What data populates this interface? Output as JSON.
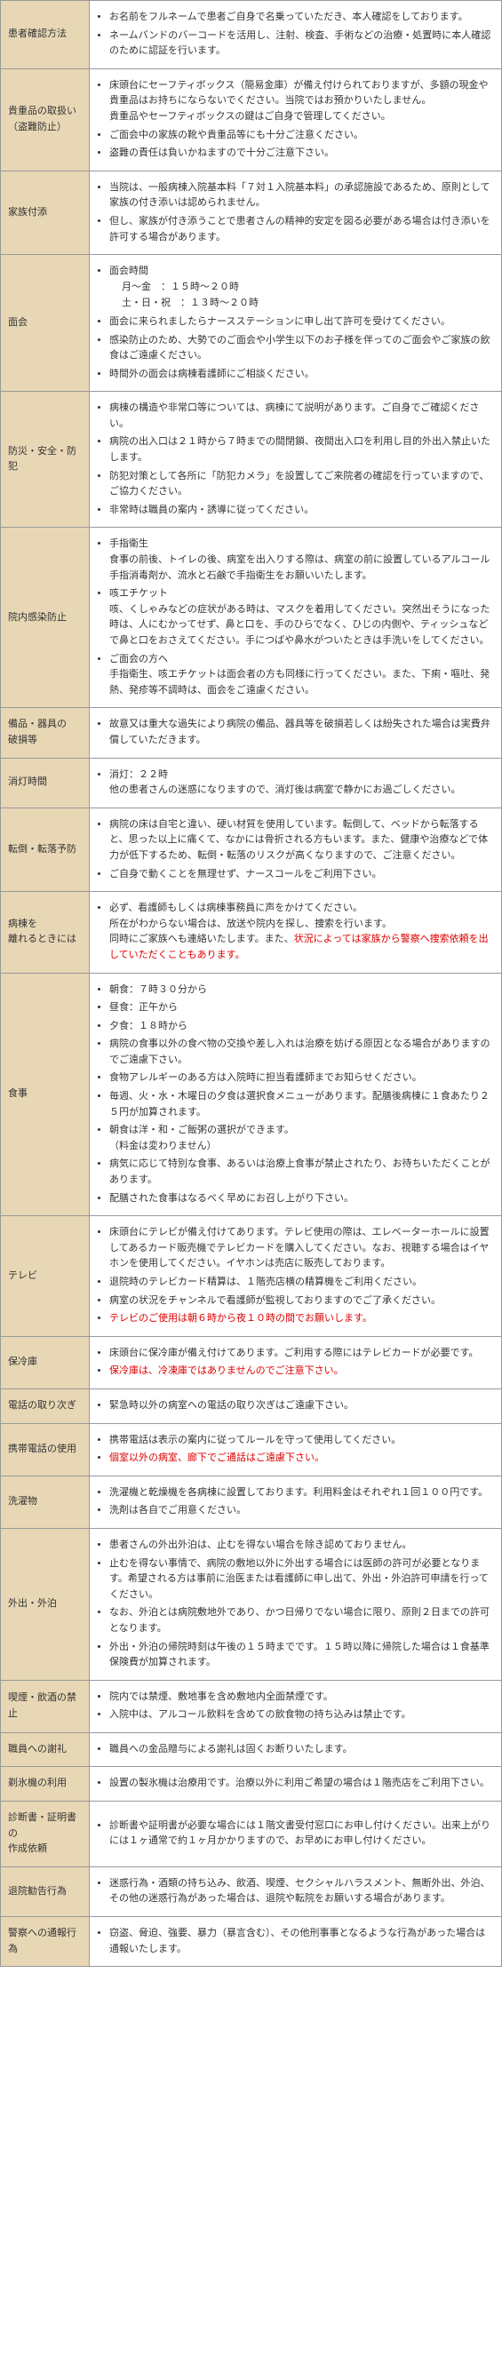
{
  "colors": {
    "label_bg": "#e8d7b5",
    "border": "#999999",
    "text": "#333333",
    "red": "#dd0000"
  },
  "rows": [
    {
      "label": "患者確認方法",
      "items": [
        {
          "t": "お名前をフルネームで患者ご自身で名乗っていただき、本人確認をしております。"
        },
        {
          "t": "ネームバンドのバーコードを活用し、注射、検査、手術などの治療・処置時に本人確認のために認証を行います。"
        }
      ]
    },
    {
      "label": "貴重品の取扱い<br>（盗難防止）",
      "items": [
        {
          "t": "床頭台にセーフティボックス（簡易金庫）が備え付けられておりますが、多額の現金や貴重品はお持ちにならないでください。当院ではお預かりいたしません。<br>貴重品やセーフティボックスの鍵はご自身で管理してください。"
        },
        {
          "t": "ご面会中の家族の靴や貴重品等にも十分ご注意ください。"
        },
        {
          "t": "盗難の責任は負いかねますので十分ご注意下さい。"
        }
      ]
    },
    {
      "label": "家族付添",
      "items": [
        {
          "t": "当院は、一般病棟入院基本料「７対１入院基本料」の承認施設であるため、原則として家族の付き添いは認められません。"
        },
        {
          "t": "但し、家族が付き添うことで患者さんの精神的安定を図る必要がある場合は付き添いを許可する場合があります。"
        }
      ]
    },
    {
      "label": "面会",
      "items": [
        {
          "t": "面会時間",
          "sub": [
            "月～金　：１５時～２０時",
            "土・日・祝　：１３時～２０時"
          ]
        },
        {
          "t": "面会に来られましたらナースステーションに申し出て許可を受けてください。"
        },
        {
          "t": "感染防止のため、大勢でのご面会や小学生以下のお子様を伴ってのご面会やご家族の飲食はご遠慮ください。"
        },
        {
          "t": "時間外の面会は病棟看護師にご相談ください。"
        }
      ]
    },
    {
      "label": "防災・安全・防犯",
      "items": [
        {
          "t": "病棟の構造や非常口等については、病棟にて説明があります。ご自身でご確認ください。"
        },
        {
          "t": "病院の出入口は２１時から７時までの間閉鎖、夜間出入口を利用し目的外出入禁止いたします。"
        },
        {
          "t": "防犯対策として各所に「防犯カメラ」を設置してご来院者の確認を行っていますので、ご協力ください。"
        },
        {
          "t": "非常時は職員の案内・誘導に従ってください。"
        }
      ]
    },
    {
      "label": "院内感染防止",
      "items": [
        {
          "t": "手指衛生<br>食事の前後、トイレの後、病室を出入りする際は、病室の前に設置しているアルコール手指消毒剤か、流水と石鹸で手指衛生をお願いいたします。"
        },
        {
          "t": "咳エチケット<br>咳、くしゃみなどの症状がある時は、マスクを着用してください。突然出そうになった時は、人にむかってせず、鼻と口を、手のひらでなく、ひじの内側や、ティッシュなどで鼻と口をおさえてください。手につばや鼻水がついたときは手洗いをしてください。"
        },
        {
          "t": "ご面会の方へ<br>手指衛生、咳エチケットは面会者の方も同様に行ってください。また、下痢・嘔吐、発熱、発疹等不調時は、面会をご遠慮ください。"
        }
      ]
    },
    {
      "label": "備品・器具の<br>破損等",
      "items": [
        {
          "t": "故意又は重大な過失により病院の備品、器具等を破損若しくは紛失された場合は実費弁償していただきます。"
        }
      ]
    },
    {
      "label": "消灯時間",
      "items": [
        {
          "t": "消灯：２２時<br>他の患者さんの迷惑になりますので、消灯後は病室で静かにお過ごしください。"
        }
      ]
    },
    {
      "label": "転倒・転落予防",
      "items": [
        {
          "t": "病院の床は自宅と違い、硬い材質を使用しています。転倒して、ベッドから転落すると、思った以上に痛くて、なかには骨折される方もいます。また、健康や治療などで体力が低下するため、転倒・転落のリスクが高くなりますので、ご注意ください。"
        },
        {
          "t": "ご自身で動くことを無理せず、ナースコールをご利用下さい。"
        }
      ]
    },
    {
      "label": "病棟を<br>離れるときには",
      "items": [
        {
          "t": "必ず、看護師もしくは病棟事務員に声をかけてください。<br>所在がわからない場合は、放送や院内を探し、捜索を行います。<br>同時にご家族へも連絡いたします。また、"
        },
        {
          "t": "",
          "red_inline": "状況によっては家族から警察へ捜索依頼を出していただくこともあります。"
        }
      ],
      "special": "combine"
    },
    {
      "label": "食事",
      "items": [
        {
          "t": "朝食：７時３０分から"
        },
        {
          "t": "昼食：正午から"
        },
        {
          "t": "夕食：１８時から"
        },
        {
          "t": "病院の食事以外の食べ物の交換や差し入れは治療を妨げる原因となる場合がありますのでご遠慮下さい。"
        },
        {
          "t": "食物アレルギーのある方は入院時に担当看護師までお知らせください。"
        },
        {
          "t": "毎週、火・水・木曜日の夕食は選択食メニューがあります。配膳後病棟に１食あたり２５円が加算されます。"
        },
        {
          "t": "朝食は洋・和・ご飯粥の選択ができます。<br>（料金は変わりません）"
        },
        {
          "t": "病気に応じて特別な食事、あるいは治療上食事が禁止されたり、お待ちいただくことがあります。"
        },
        {
          "t": "配膳された食事はなるべく早めにお召し上がり下さい。"
        }
      ]
    },
    {
      "label": "テレビ",
      "items": [
        {
          "t": "床頭台にテレビが備え付けてあります。テレビ使用の際は、エレベーターホールに設置してあるカード販売機でテレビカードを購入してください。なお、視聴する場合はイヤホンを使用してください。イヤホンは売店に販売しております。"
        },
        {
          "t": "退院時のテレビカード精算は、１階売店横の精算機をご利用ください。"
        },
        {
          "t": "病室の状況をチャンネルで看護師が監視しておりますのでご了承ください。"
        },
        {
          "t": "",
          "red": "テレビのご使用は朝６時から夜１０時の間でお願いします。"
        }
      ]
    },
    {
      "label": "保冷庫",
      "items": [
        {
          "t": "床頭台に保冷庫が備え付けてあります。ご利用する際にはテレビカードが必要です。"
        },
        {
          "t": "",
          "red": "保冷庫は、冷凍庫ではありませんのでご注意下さい。"
        }
      ]
    },
    {
      "label": "電話の取り次ぎ",
      "items": [
        {
          "t": "緊急時以外の病室への電話の取り次ぎはご遠慮下さい。"
        }
      ]
    },
    {
      "label": "携帯電話の使用",
      "items": [
        {
          "t": "携帯電話は表示の案内に従ってルールを守って使用してください。"
        },
        {
          "t": "",
          "red": "個室以外の病室、廊下でご通話はご遠慮下さい。"
        }
      ]
    },
    {
      "label": "洗濯物",
      "items": [
        {
          "t": "洗濯機と乾燥機を各病棟に設置しております。利用料金はそれぞれ１回１００円です。"
        },
        {
          "t": "洗剤は各自でご用意ください。"
        }
      ]
    },
    {
      "label": "外出・外泊",
      "items": [
        {
          "t": "患者さんの外出外泊は、止むを得ない場合を除き認めておりません。"
        },
        {
          "t": "止むを得ない事情で、病院の敷地以外に外出する場合には医師の許可が必要となります。希望される方は事前に治医または看護師に申し出て、外出・外泊許可申請を行ってください。"
        },
        {
          "t": "なお、外泊とは病院敷地外であり、かつ日帰りでない場合に限り、原則２日までの許可となります。"
        },
        {
          "t": "外出・外泊の帰院時刻は午後の１５時までです。１５時以降に帰院した場合は１食基準保険費が加算されます。"
        }
      ]
    },
    {
      "label": "喫煙・飲酒の禁止",
      "items": [
        {
          "t": "院内では禁煙、敷地事を含め敷地内全面禁煙です。"
        },
        {
          "t": "入院中は、アルコール飲料を含めての飲食物の持ち込みは禁止です。"
        }
      ]
    },
    {
      "label": "職員への謝礼",
      "items": [
        {
          "t": "職員への金品贈与による謝礼は固くお断りいたします。"
        }
      ]
    },
    {
      "label": "剃氷機の利用",
      "items": [
        {
          "t": "設置の製氷機は治療用です。治療以外に利用ご希望の場合は１階売店をご利用下さい。"
        }
      ]
    },
    {
      "label": "診断書・証明書の<br>作成依頼",
      "items": [
        {
          "t": "診断書や証明書が必要な場合には１階文書受付窓口にお申し付けください。出来上がりには１ヶ通常で約１ヶ月かかりますので、お早めにお申し付けください。"
        }
      ]
    },
    {
      "label": "退院勧告行為",
      "items": [
        {
          "t": "迷惑行為・酒類の持ち込み、飲酒、喫煙、セクシャルハラスメント、無断外出、外泊、その他の迷惑行為があった場合は、退院や転院をお願いする場合があります。"
        }
      ]
    },
    {
      "label": "警察への通報行為",
      "items": [
        {
          "t": "窃盗、脅迫、強要、暴力（暴言含む）、その他刑事事となるような行為があった場合は通報いたします。"
        }
      ]
    }
  ]
}
